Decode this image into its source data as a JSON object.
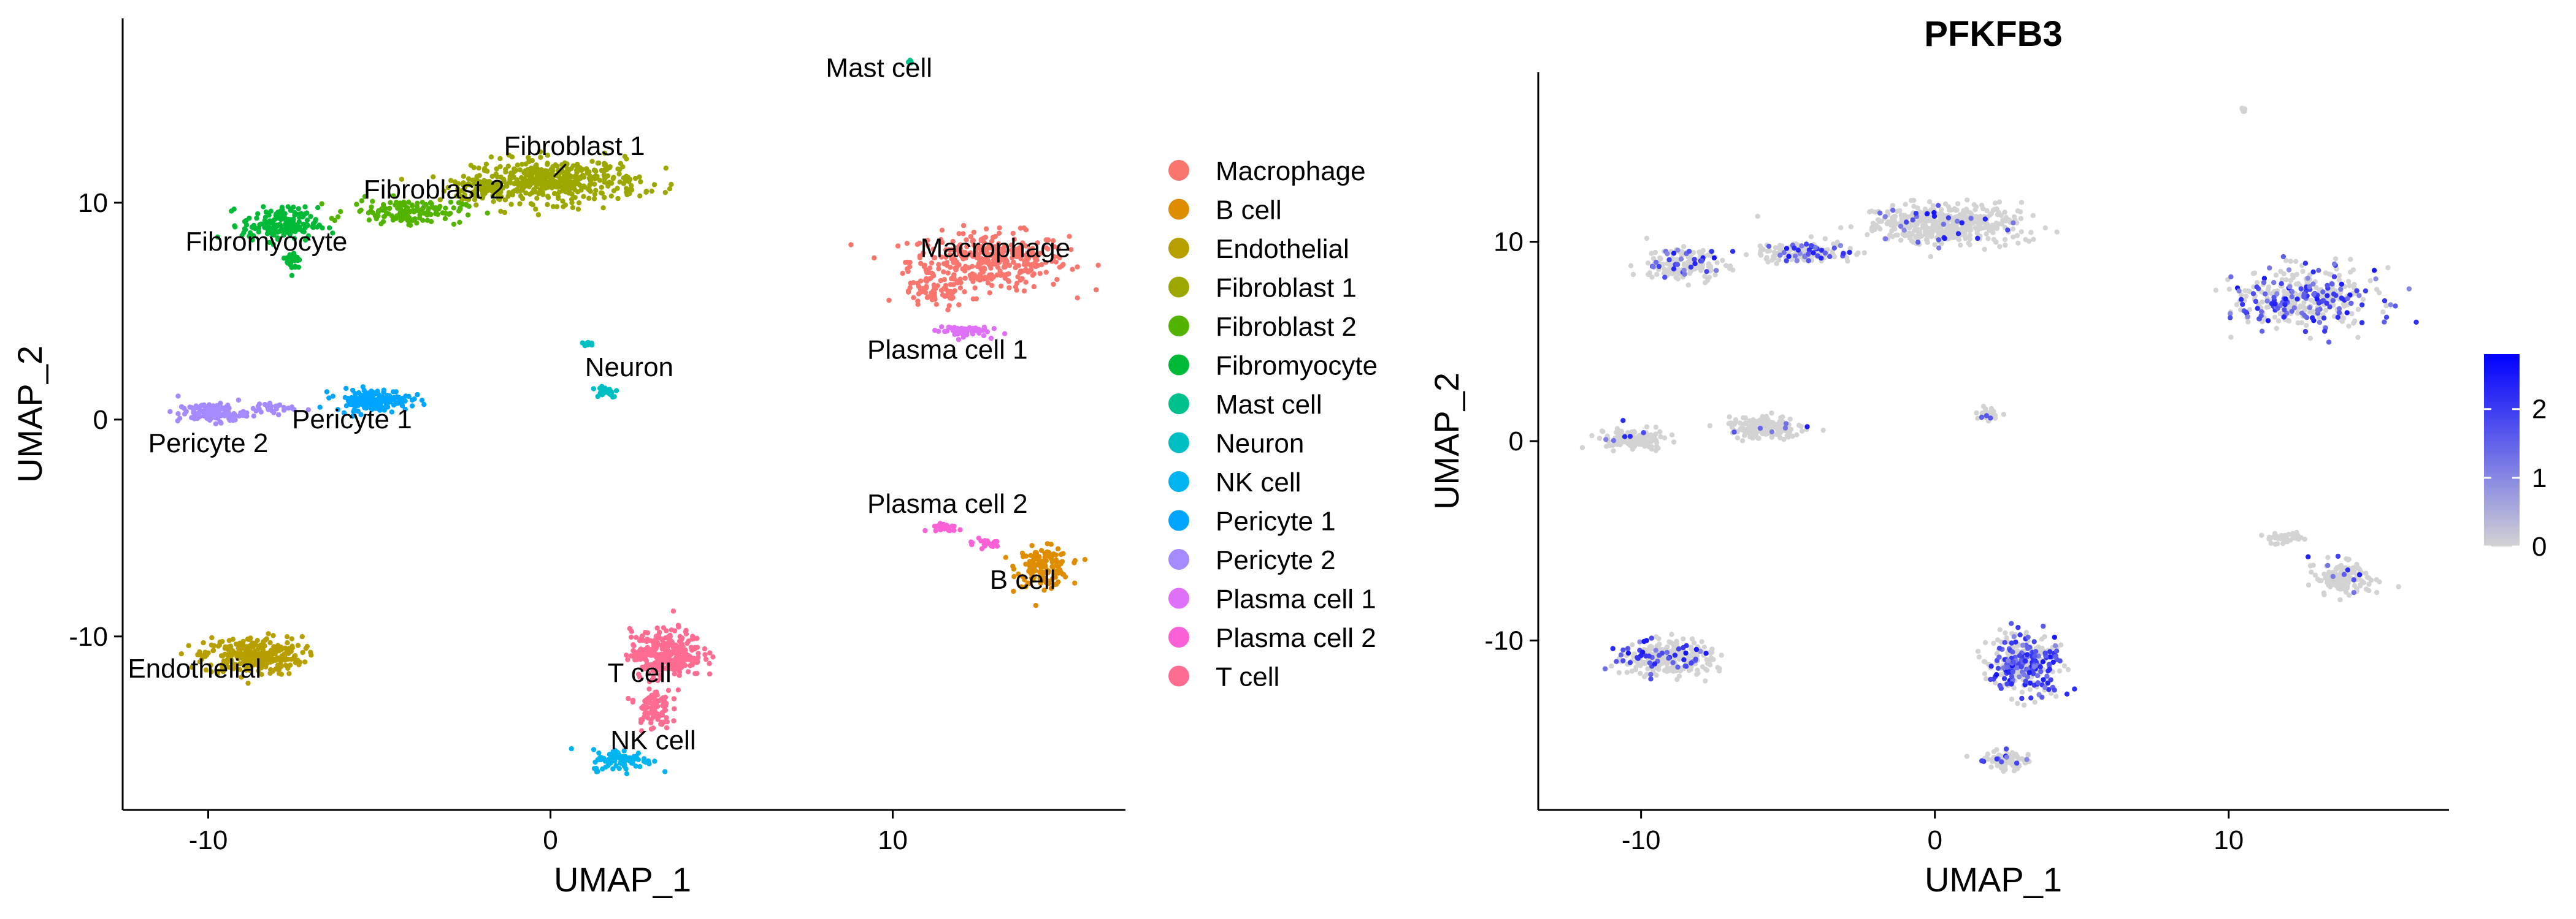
{
  "chart_data": [
    {
      "type": "scatter",
      "title": "",
      "xlabel": "UMAP_1",
      "ylabel": "UMAP_2",
      "xlim": [
        -12.5,
        16.8
      ],
      "ylim": [
        -18.0,
        18.5
      ],
      "xticks": [
        -10,
        0,
        10
      ],
      "yticks": [
        -10,
        0,
        10
      ],
      "grid": false,
      "legend_position": "right",
      "legend_title": "",
      "series": [
        {
          "name": "Macrophage",
          "color": "#F8766D",
          "label": "Macrophage",
          "label_pos": [
            13.0,
            7.5
          ],
          "clusters": [
            {
              "center": [
                12.8,
                7.3
              ],
              "spread": [
                2.1,
                1.2
              ],
              "n": 360
            },
            {
              "center": [
                11.2,
                5.8
              ],
              "spread": [
                0.9,
                0.6
              ],
              "n": 60
            }
          ]
        },
        {
          "name": "B cell",
          "color": "#DE8C00",
          "label": "B cell",
          "label_pos": [
            13.8,
            -7.8
          ],
          "clusters": [
            {
              "center": [
                14.4,
                -6.8
              ],
              "spread": [
                0.7,
                0.8
              ],
              "n": 150
            }
          ]
        },
        {
          "name": "Endothelial",
          "color": "#B79F00",
          "label": "Endothelial",
          "label_pos": [
            -10.4,
            -11.9
          ],
          "clusters": [
            {
              "center": [
                -8.7,
                -10.9
              ],
              "spread": [
                1.3,
                0.8
              ],
              "n": 300
            }
          ]
        },
        {
          "name": "Fibroblast 1",
          "color": "#9CA700",
          "label": "Fibroblast 1",
          "label_pos": [
            0.7,
            12.2
          ],
          "clusters": [
            {
              "center": [
                0.2,
                11.0
              ],
              "spread": [
                2.2,
                0.9
              ],
              "n": 420
            },
            {
              "center": [
                -2.0,
                10.6
              ],
              "spread": [
                0.9,
                0.6
              ],
              "n": 80
            }
          ]
        },
        {
          "name": "Fibroblast 2",
          "color": "#53B400",
          "label": "Fibroblast 2",
          "label_pos": [
            -3.4,
            10.2
          ],
          "clusters": [
            {
              "center": [
                -4.2,
                9.6
              ],
              "spread": [
                1.5,
                0.5
              ],
              "n": 140
            }
          ]
        },
        {
          "name": "Fibromyocyte",
          "color": "#00B937",
          "label": "Fibromyocyte",
          "label_pos": [
            -8.3,
            7.8
          ],
          "clusters": [
            {
              "center": [
                -7.9,
                9.0
              ],
              "spread": [
                1.0,
                0.7
              ],
              "n": 170
            },
            {
              "center": [
                -7.5,
                7.3
              ],
              "spread": [
                0.2,
                0.5
              ],
              "n": 25
            }
          ]
        },
        {
          "name": "Mast cell",
          "color": "#00C08B",
          "label": "Mast cell",
          "label_pos": [
            9.6,
            15.8
          ],
          "clusters": [
            {
              "center": [
                10.5,
                16.5
              ],
              "spread": [
                0.08,
                0.1
              ],
              "n": 8
            }
          ]
        },
        {
          "name": "Neuron",
          "color": "#00BFC4",
          "label": "Neuron",
          "label_pos": [
            2.3,
            2.0
          ],
          "clusters": [
            {
              "center": [
                1.6,
                1.3
              ],
              "spread": [
                0.35,
                0.25
              ],
              "n": 30
            },
            {
              "center": [
                1.1,
                3.5
              ],
              "spread": [
                0.15,
                0.12
              ],
              "n": 10
            }
          ]
        },
        {
          "name": "NK cell",
          "color": "#00B4EF",
          "label": "NK cell",
          "label_pos": [
            3.0,
            -15.2
          ],
          "clusters": [
            {
              "center": [
                2.1,
                -15.7
              ],
              "spread": [
                0.8,
                0.45
              ],
              "n": 90
            }
          ]
        },
        {
          "name": "Pericyte 1",
          "color": "#00A5FF",
          "label": "Pericyte 1",
          "label_pos": [
            -5.8,
            -0.4
          ],
          "clusters": [
            {
              "center": [
                -5.2,
                0.9
              ],
              "spread": [
                1.0,
                0.45
              ],
              "n": 160
            }
          ]
        },
        {
          "name": "Pericyte 2",
          "color": "#A58AFF",
          "label": "Pericyte 2",
          "label_pos": [
            -10.0,
            -1.5
          ],
          "clusters": [
            {
              "center": [
                -9.9,
                0.3
              ],
              "spread": [
                0.9,
                0.4
              ],
              "n": 120
            },
            {
              "center": [
                -8.0,
                0.5
              ],
              "spread": [
                0.6,
                0.2
              ],
              "n": 25
            }
          ]
        },
        {
          "name": "Plasma cell 1",
          "color": "#DF70F8",
          "label": "Plasma cell 1",
          "label_pos": [
            11.6,
            2.8
          ],
          "clusters": [
            {
              "center": [
                12.0,
                4.1
              ],
              "spread": [
                0.7,
                0.25
              ],
              "n": 60
            }
          ]
        },
        {
          "name": "Plasma cell 2",
          "color": "#FB61D7",
          "label": "Plasma cell 2",
          "label_pos": [
            11.6,
            -4.3
          ],
          "clusters": [
            {
              "center": [
                11.5,
                -5.0
              ],
              "spread": [
                0.5,
                0.25
              ],
              "n": 20
            },
            {
              "center": [
                12.7,
                -5.7
              ],
              "spread": [
                0.5,
                0.2
              ],
              "n": 20
            }
          ]
        },
        {
          "name": "T cell",
          "color": "#FF6C91",
          "label": "T cell",
          "label_pos": [
            2.6,
            -12.1
          ],
          "clusters": [
            {
              "center": [
                3.4,
                -10.8
              ],
              "spread": [
                0.95,
                1.0
              ],
              "n": 300
            },
            {
              "center": [
                3.0,
                -13.3
              ],
              "spread": [
                0.45,
                0.9
              ],
              "n": 90
            }
          ]
        }
      ]
    },
    {
      "type": "scatter",
      "title": "PFKFB3",
      "xlabel": "UMAP_1",
      "ylabel": "UMAP_2",
      "xlim": [
        -13.5,
        17.5
      ],
      "ylim": [
        -18.5,
        18.5
      ],
      "xticks": [
        -10,
        0,
        10
      ],
      "yticks": [
        -10,
        0,
        10
      ],
      "grid": false,
      "color_scale": {
        "low": "#D3D3D3",
        "high": "#0000FF",
        "min": 0,
        "max": 2.8,
        "ticks": [
          0,
          1,
          2
        ]
      },
      "clusters": [
        {
          "center": [
            12.7,
            7.2
          ],
          "spread": [
            2.1,
            1.3
          ],
          "n": 380,
          "expressing_fraction": 0.35
        },
        {
          "center": [
            13.9,
            -6.9
          ],
          "spread": [
            0.8,
            0.8
          ],
          "n": 140,
          "expressing_fraction": 0.05
        },
        {
          "center": [
            -9.1,
            -10.9
          ],
          "spread": [
            1.4,
            0.8
          ],
          "n": 300,
          "expressing_fraction": 0.15
        },
        {
          "center": [
            0.3,
            10.9
          ],
          "spread": [
            2.4,
            0.9
          ],
          "n": 480,
          "expressing_fraction": 0.05
        },
        {
          "center": [
            -4.5,
            9.5
          ],
          "spread": [
            1.6,
            0.5
          ],
          "n": 150,
          "expressing_fraction": 0.25
        },
        {
          "center": [
            -8.5,
            8.8
          ],
          "spread": [
            1.2,
            0.7
          ],
          "n": 180,
          "expressing_fraction": 0.15
        },
        {
          "center": [
            10.5,
            16.6
          ],
          "spread": [
            0.08,
            0.1
          ],
          "n": 8,
          "expressing_fraction": 0.0
        },
        {
          "center": [
            1.8,
            1.4
          ],
          "spread": [
            0.35,
            0.25
          ],
          "n": 30,
          "expressing_fraction": 0.2
        },
        {
          "center": [
            2.4,
            -16.0
          ],
          "spread": [
            0.8,
            0.45
          ],
          "n": 80,
          "expressing_fraction": 0.15
        },
        {
          "center": [
            -5.8,
            0.7
          ],
          "spread": [
            1.1,
            0.5
          ],
          "n": 170,
          "expressing_fraction": 0.05
        },
        {
          "center": [
            -10.3,
            0.1
          ],
          "spread": [
            1.0,
            0.45
          ],
          "n": 140,
          "expressing_fraction": 0.05
        },
        {
          "center": [
            11.9,
            -4.9
          ],
          "spread": [
            0.6,
            0.25
          ],
          "n": 40,
          "expressing_fraction": 0.05
        },
        {
          "center": [
            3.0,
            -11.2
          ],
          "spread": [
            1.0,
            1.3
          ],
          "n": 360,
          "expressing_fraction": 0.4
        }
      ]
    }
  ]
}
